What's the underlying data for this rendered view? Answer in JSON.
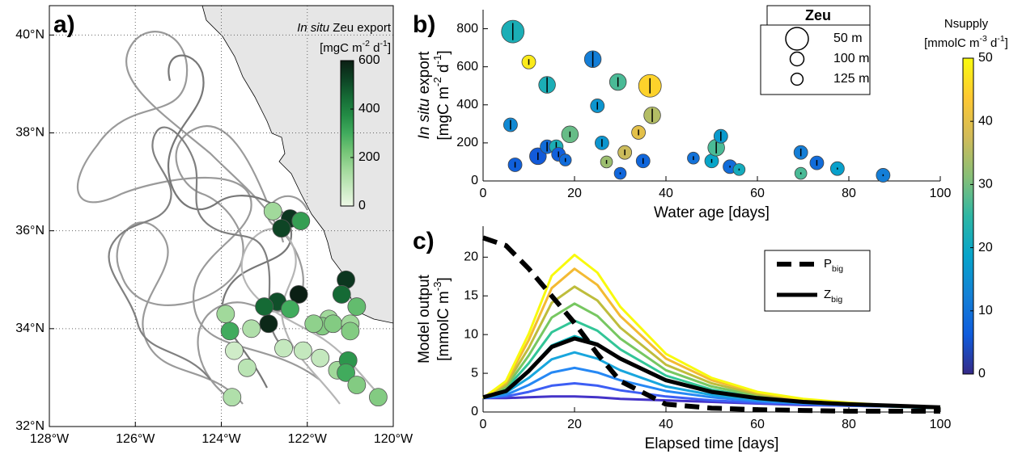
{
  "chart_data": [
    {
      "type": "map-scatter",
      "panel_label": "a)",
      "xlim": [
        -128,
        -120
      ],
      "ylim": [
        32,
        40.6
      ],
      "xticks": [
        {
          "value": -128,
          "label": "128°W"
        },
        {
          "value": -126,
          "label": "126°W"
        },
        {
          "value": -124,
          "label": "124°W"
        },
        {
          "value": -122,
          "label": "122°W"
        },
        {
          "value": -120,
          "label": "120°W"
        }
      ],
      "yticks": [
        {
          "value": 32,
          "label": "32°N"
        },
        {
          "value": 34,
          "label": "34°N"
        },
        {
          "value": 36,
          "label": "36°N"
        },
        {
          "value": 38,
          "label": "38°N"
        },
        {
          "value": 40,
          "label": "40°N"
        }
      ],
      "grid": true,
      "box": true,
      "x": [
        -122.8,
        -122.4,
        -122.6,
        -122.15,
        -121.1,
        -122.2,
        -122.7,
        -123.0,
        -122.4,
        -122.9,
        -121.2,
        -123.9,
        -123.8,
        -123.3,
        -121.5,
        -121.65,
        -121.85,
        -121.4,
        -121.0,
        -120.85,
        -121.0,
        -123.7,
        -122.55,
        -122.1,
        -123.4,
        -121.7,
        -121.3,
        -121.05,
        -121.1,
        -120.85,
        -123.75,
        -120.35
      ],
      "y": [
        36.4,
        36.25,
        36.05,
        36.2,
        35.0,
        34.7,
        34.55,
        34.45,
        34.4,
        34.1,
        34.7,
        34.3,
        33.95,
        34.0,
        34.2,
        34.05,
        34.1,
        34.1,
        34.1,
        34.45,
        33.95,
        33.55,
        33.6,
        33.55,
        33.2,
        33.4,
        33.15,
        33.35,
        33.1,
        32.85,
        32.6,
        32.6
      ],
      "values": [
        150,
        550,
        520,
        330,
        550,
        600,
        500,
        450,
        300,
        580,
        450,
        150,
        300,
        120,
        150,
        200,
        180,
        200,
        150,
        250,
        200,
        60,
        80,
        80,
        100,
        80,
        150,
        350,
        300,
        200,
        120,
        200
      ],
      "colorbar": {
        "title": [
          {
            "text": "In situ",
            "italic": true
          },
          {
            "text": " Zeu export"
          }
        ],
        "subtitle": [
          {
            "text": "[mgC m"
          },
          {
            "text": "-2",
            "sup": true
          },
          {
            "text": " d"
          },
          {
            "text": "-1",
            "sup": true
          },
          {
            "text": "]"
          }
        ],
        "lim": [
          0,
          600
        ],
        "ticks": [
          0,
          200,
          400,
          600
        ],
        "colors": [
          "#edf8e6",
          "#c7e9c0",
          "#a1d99b",
          "#74c476",
          "#41ab5d",
          "#238b45",
          "#156a35",
          "#0d4224",
          "#0b1f14"
        ]
      }
    },
    {
      "type": "bubble",
      "panel_label": "b)",
      "xlabel": [
        {
          "text": "Water age [days]"
        }
      ],
      "ylabel": [
        {
          "text": "In situ",
          "italic": true
        },
        {
          "text": " export"
        }
      ],
      "ylabel2": [
        {
          "text": "[mgC m"
        },
        {
          "text": "-2",
          "sup": true
        },
        {
          "text": " d"
        },
        {
          "text": "-1",
          "sup": true
        },
        {
          "text": "]"
        }
      ],
      "xlim": [
        0,
        100
      ],
      "ylim": [
        0,
        900
      ],
      "xticks": [
        0,
        20,
        40,
        60,
        80,
        100
      ],
      "yticks": [
        0,
        200,
        400,
        600,
        800
      ],
      "x": [
        6.5,
        10,
        14,
        6,
        7,
        12,
        14,
        16,
        16.5,
        18,
        19,
        24,
        25,
        26,
        27,
        29.5,
        30,
        31,
        34,
        35,
        36.5,
        37,
        46,
        50,
        51,
        52,
        54,
        56,
        69.5,
        69.5,
        73,
        77.5,
        87.5
      ],
      "y": [
        785,
        625,
        505,
        295,
        85,
        130,
        180,
        180,
        140,
        110,
        245,
        640,
        395,
        200,
        100,
        520,
        40,
        150,
        255,
        105,
        500,
        345,
        120,
        105,
        175,
        235,
        75,
        60,
        150,
        40,
        95,
        65,
        30
      ],
      "error": [
        45,
        15,
        40,
        25,
        15,
        20,
        25,
        25,
        15,
        10,
        15,
        40,
        20,
        20,
        10,
        25,
        5,
        15,
        15,
        15,
        40,
        35,
        10,
        10,
        30,
        25,
        5,
        5,
        20,
        5,
        15,
        5,
        5
      ],
      "size": [
        50,
        100,
        75,
        100,
        100,
        75,
        100,
        100,
        100,
        125,
        75,
        75,
        100,
        100,
        125,
        75,
        125,
        100,
        100,
        100,
        50,
        75,
        125,
        100,
        75,
        100,
        100,
        125,
        100,
        125,
        100,
        100,
        100
      ],
      "color_values": [
        22,
        48,
        22,
        14,
        7,
        6,
        9,
        22,
        7,
        9,
        29,
        12,
        16,
        16,
        33,
        27,
        8,
        37,
        40,
        8,
        45,
        35,
        10,
        19,
        27,
        17,
        9,
        21,
        12,
        27,
        9,
        18,
        12
      ],
      "size_legend": {
        "title": "Zeu",
        "entries": [
          {
            "value": 50,
            "label": "50 m"
          },
          {
            "value": 100,
            "label": "100 m"
          },
          {
            "value": 125,
            "label": "125 m"
          }
        ]
      },
      "colorbar": {
        "title": [
          {
            "text": "Nsupply"
          }
        ],
        "subtitle": [
          {
            "text": "[mmolC m"
          },
          {
            "text": "-3",
            "sup": true
          },
          {
            "text": " d"
          },
          {
            "text": "-1",
            "sup": true
          },
          {
            "text": "]"
          }
        ],
        "lim": [
          0,
          50
        ],
        "ticks": [
          0,
          10,
          20,
          30,
          40,
          50
        ],
        "colors": [
          "#352a87",
          "#0f5cdd",
          "#1481d6",
          "#06a4ca",
          "#2eb7a4",
          "#87bf77",
          "#d1bb59",
          "#fec832",
          "#f9fb0e"
        ]
      }
    },
    {
      "type": "line",
      "panel_label": "c)",
      "xlabel": [
        {
          "text": "Elapsed time [days]"
        }
      ],
      "ylabel": [
        {
          "text": "Model output"
        }
      ],
      "ylabel2": [
        {
          "text": "[mmolC m"
        },
        {
          "text": "-3",
          "sup": true
        },
        {
          "text": "]"
        }
      ],
      "xlim": [
        0,
        100
      ],
      "ylim": [
        0,
        24
      ],
      "xticks": [
        0,
        20,
        40,
        60,
        80,
        100
      ],
      "yticks": [
        0,
        5,
        10,
        15,
        20
      ],
      "x": [
        0,
        5,
        10,
        15,
        20,
        25,
        30,
        40,
        50,
        60,
        70,
        80,
        90,
        100
      ],
      "series": [
        {
          "color": "#4433c8",
          "width": 3,
          "values": [
            1.8,
            1.8,
            1.9,
            2.0,
            2.0,
            1.9,
            1.7,
            1.5,
            1.3,
            1.1,
            0.9,
            0.8,
            0.7,
            0.5
          ]
        },
        {
          "color": "#3d5ef4",
          "width": 3,
          "values": [
            1.8,
            2.0,
            2.6,
            3.4,
            3.7,
            3.4,
            2.8,
            2.0,
            1.5,
            1.2,
            1.0,
            0.8,
            0.7,
            0.5
          ]
        },
        {
          "color": "#2688f4",
          "width": 3,
          "values": [
            1.8,
            2.2,
            3.5,
            5.1,
            5.7,
            5.1,
            4.1,
            2.7,
            1.9,
            1.4,
            1.1,
            0.9,
            0.7,
            0.5
          ]
        },
        {
          "color": "#18a6dd",
          "width": 3,
          "values": [
            1.8,
            2.5,
            4.4,
            6.8,
            7.7,
            6.9,
            5.4,
            3.3,
            2.2,
            1.6,
            1.2,
            0.9,
            0.7,
            0.5
          ]
        },
        {
          "color": "#0cbac0",
          "width": 3,
          "values": [
            1.8,
            2.7,
            5.4,
            8.6,
            9.8,
            8.8,
            6.8,
            4.0,
            2.6,
            1.7,
            1.3,
            1.0,
            0.7,
            0.5
          ]
        },
        {
          "color": "#32c597",
          "width": 3,
          "values": [
            1.8,
            3.0,
            6.3,
            10.3,
            11.8,
            10.5,
            8.1,
            4.7,
            2.9,
            1.9,
            1.4,
            1.0,
            0.7,
            0.5
          ]
        },
        {
          "color": "#77c761",
          "width": 3,
          "values": [
            1.8,
            3.2,
            7.3,
            12.2,
            14.0,
            12.4,
            9.5,
            5.4,
            3.3,
            2.1,
            1.4,
            1.0,
            0.8,
            0.5
          ]
        },
        {
          "color": "#bebd3c",
          "width": 3,
          "values": [
            1.8,
            3.5,
            8.3,
            14.1,
            16.2,
            14.4,
            10.9,
            6.1,
            3.7,
            2.3,
            1.5,
            1.1,
            0.8,
            0.5
          ]
        },
        {
          "color": "#f3ba33",
          "width": 3,
          "values": [
            1.8,
            3.8,
            9.3,
            16.0,
            18.5,
            16.4,
            12.4,
            6.9,
            4.1,
            2.5,
            1.6,
            1.1,
            0.8,
            0.5
          ]
        },
        {
          "color": "#f8fa0d",
          "width": 3,
          "values": [
            1.8,
            4.0,
            10.1,
            17.6,
            20.3,
            18.0,
            13.6,
            7.5,
            4.4,
            2.6,
            1.7,
            1.2,
            0.8,
            0.5
          ]
        },
        {
          "name": [
            {
              "text": "Z"
            },
            {
              "text": "big",
              "sub": true
            }
          ],
          "color": "#000000",
          "width": 5,
          "values": [
            1.9,
            2.7,
            5.3,
            8.4,
            9.5,
            8.7,
            6.9,
            4.1,
            2.6,
            1.8,
            1.3,
            1.0,
            0.8,
            0.6
          ]
        },
        {
          "name": [
            {
              "text": "P"
            },
            {
              "text": "big",
              "sub": true
            }
          ],
          "color": "#000000",
          "width": 6,
          "dashed": true,
          "values": [
            22.5,
            21.5,
            18.5,
            15.0,
            11.5,
            7.5,
            4.0,
            1.0,
            0.5,
            0.3,
            0.2,
            0.1,
            0.1,
            0.1
          ]
        }
      ]
    }
  ]
}
